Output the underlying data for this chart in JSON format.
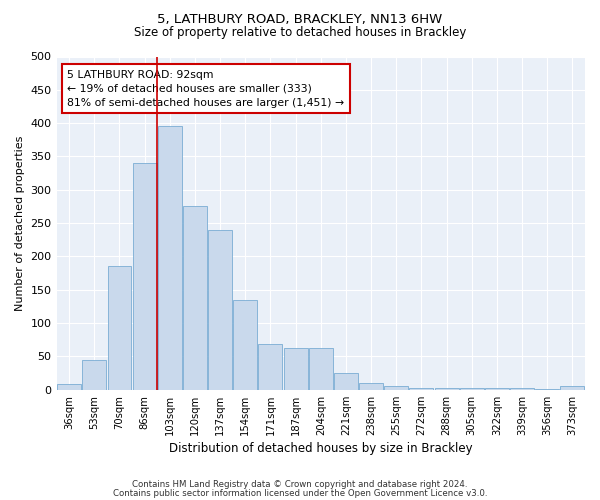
{
  "title_line1": "5, LATHBURY ROAD, BRACKLEY, NN13 6HW",
  "title_line2": "Size of property relative to detached houses in Brackley",
  "xlabel": "Distribution of detached houses by size in Brackley",
  "ylabel": "Number of detached properties",
  "categories": [
    "36sqm",
    "53sqm",
    "70sqm",
    "86sqm",
    "103sqm",
    "120sqm",
    "137sqm",
    "154sqm",
    "171sqm",
    "187sqm",
    "204sqm",
    "221sqm",
    "238sqm",
    "255sqm",
    "272sqm",
    "288sqm",
    "305sqm",
    "322sqm",
    "339sqm",
    "356sqm",
    "373sqm"
  ],
  "values": [
    8,
    45,
    185,
    340,
    395,
    275,
    240,
    135,
    68,
    62,
    62,
    25,
    10,
    5,
    3,
    2,
    2,
    2,
    2,
    1,
    5
  ],
  "bar_color": "#c9d9ec",
  "bar_edge_color": "#7aadd4",
  "bg_color": "#eaf0f8",
  "grid_color": "#ffffff",
  "vline_color": "#cc0000",
  "vline_x_index": 3.5,
  "annotation_line1": "5 LATHBURY ROAD: 92sqm",
  "annotation_line2": "← 19% of detached houses are smaller (333)",
  "annotation_line3": "81% of semi-detached houses are larger (1,451) →",
  "annotation_box_color": "#cc0000",
  "ylim": [
    0,
    500
  ],
  "yticks": [
    0,
    50,
    100,
    150,
    200,
    250,
    300,
    350,
    400,
    450,
    500
  ],
  "footer_line1": "Contains HM Land Registry data © Crown copyright and database right 2024.",
  "footer_line2": "Contains public sector information licensed under the Open Government Licence v3.0."
}
